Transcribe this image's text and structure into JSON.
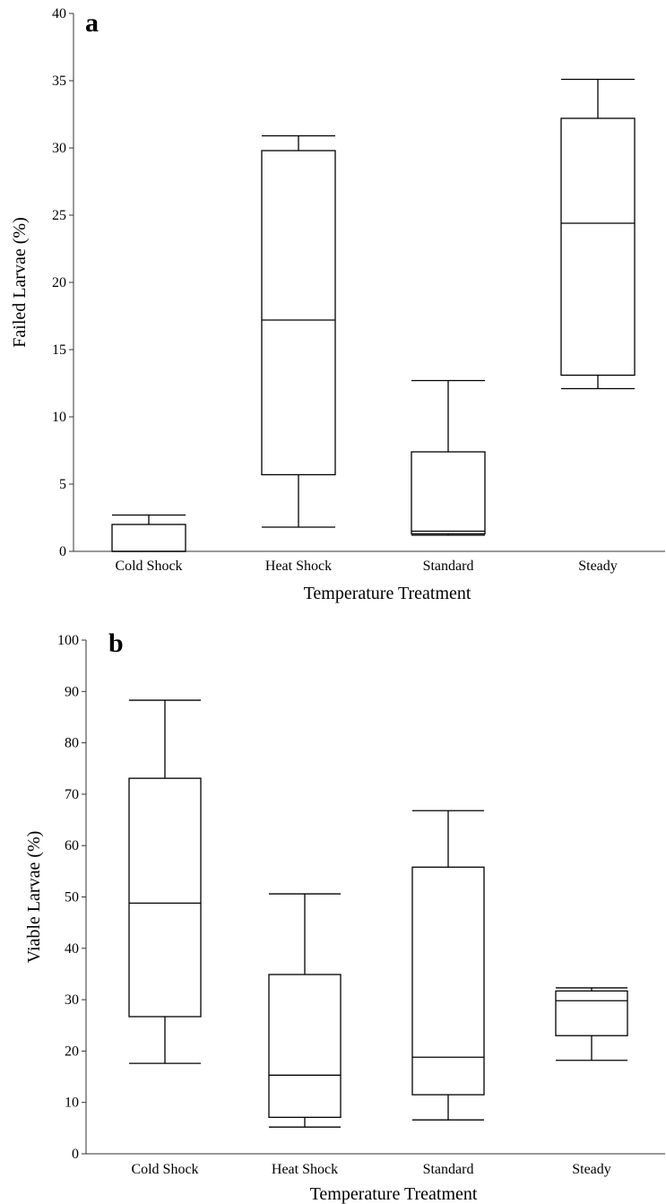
{
  "chart_data": [
    {
      "type": "box",
      "panel_label": "a",
      "xlabel": "Temperature Treatment",
      "ylabel": "Failed Larvae (%)",
      "ylim": [
        0,
        40
      ],
      "yticks": [
        0,
        5,
        10,
        15,
        20,
        25,
        30,
        35,
        40
      ],
      "grid": false,
      "categories": [
        "Cold Shock",
        "Heat Shock",
        "Standard",
        "Steady"
      ],
      "boxes": [
        {
          "min": 0,
          "q1": 0,
          "median": 0,
          "q3": 2.0,
          "max": 2.7
        },
        {
          "min": 1.8,
          "q1": 5.7,
          "median": 17.2,
          "q3": 29.8,
          "max": 30.9
        },
        {
          "min": 1.2,
          "q1": 1.3,
          "median": 1.5,
          "q3": 7.4,
          "max": 12.7
        },
        {
          "min": 12.1,
          "q1": 13.1,
          "median": 24.4,
          "q3": 32.2,
          "max": 35.1
        }
      ]
    },
    {
      "type": "box",
      "panel_label": "b",
      "xlabel": "Temperature Treatment",
      "ylabel": "Viable Larvae (%)",
      "ylim": [
        0,
        100
      ],
      "yticks": [
        0,
        10,
        20,
        30,
        40,
        50,
        60,
        70,
        80,
        90,
        100
      ],
      "grid": false,
      "categories": [
        "Cold Shock",
        "Heat Shock",
        "Standard",
        "Steady"
      ],
      "boxes": [
        {
          "min": 17.6,
          "q1": 26.7,
          "median": 48.8,
          "q3": 73.1,
          "max": 88.3
        },
        {
          "min": 5.2,
          "q1": 7.1,
          "median": 15.3,
          "q3": 34.9,
          "max": 50.6
        },
        {
          "min": 6.6,
          "q1": 11.5,
          "median": 18.8,
          "q3": 55.8,
          "max": 66.8
        },
        {
          "min": 18.2,
          "q1": 23.0,
          "median": 29.8,
          "q3": 31.7,
          "max": 32.3
        }
      ]
    }
  ]
}
